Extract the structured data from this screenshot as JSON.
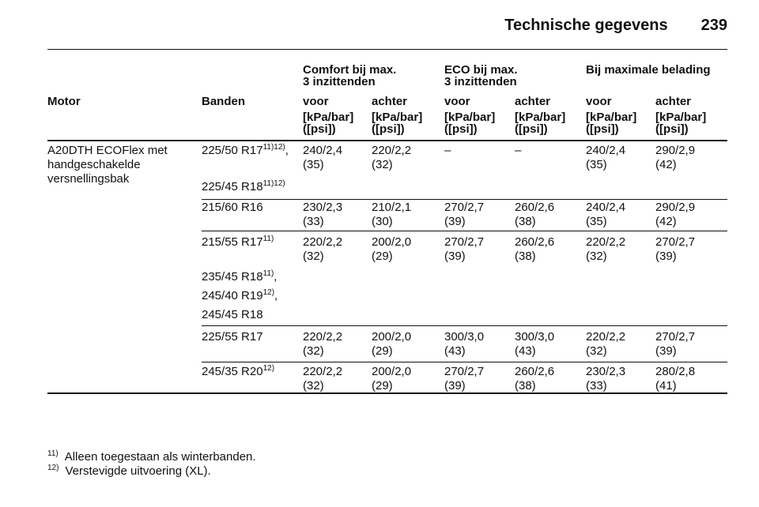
{
  "header": {
    "title": "Technische gegevens",
    "page": "239"
  },
  "table": {
    "groups": [
      [
        "Comfort bij max.",
        "3 inzittenden"
      ],
      [
        "ECO bij max.",
        "3 inzittenden"
      ],
      [
        "Bij maximale belading"
      ]
    ],
    "columns": {
      "motor": "Motor",
      "banden": "Banden",
      "sub": [
        "voor",
        "achter",
        "voor",
        "achter",
        "voor",
        "achter"
      ]
    },
    "units": [
      [
        "[kPa/bar]",
        "([psi])"
      ],
      [
        "[kPa/bar]",
        "([psi])"
      ],
      [
        "[kPa/bar]",
        "([psi])"
      ],
      [
        "[kPa/bar]",
        "([psi])"
      ],
      [
        "[kPa/bar]",
        "([psi])"
      ],
      [
        "[kPa/bar]",
        "([psi])"
      ]
    ],
    "motor": [
      "A20DTH ECOFlex met",
      "handgeschakelde",
      "versnellingsbak"
    ],
    "rows": [
      {
        "tyres": [
          {
            "text": "225/50 R17",
            "sup": "11)12)",
            "suffix": ","
          },
          {
            "text": "225/45 R18",
            "sup": "11)12)"
          }
        ],
        "values": [
          [
            "240/2,4",
            "(35)"
          ],
          [
            "220/2,2",
            "(32)"
          ],
          [
            "–"
          ],
          [
            "–"
          ],
          [
            "240/2,4",
            "(35)"
          ],
          [
            "290/2,9",
            "(42)"
          ]
        ]
      },
      {
        "tyres": [
          {
            "text": "215/60 R16"
          }
        ],
        "values": [
          [
            "230/2,3",
            "(33)"
          ],
          [
            "210/2,1",
            "(30)"
          ],
          [
            "270/2,7",
            "(39)"
          ],
          [
            "260/2,6",
            "(38)"
          ],
          [
            "240/2,4",
            "(35)"
          ],
          [
            "290/2,9",
            "(42)"
          ]
        ]
      },
      {
        "tyres": [
          {
            "text": "215/55 R17",
            "sup": "11)"
          },
          {
            "text": "235/45 R18",
            "sup": "11)",
            "suffix": ","
          },
          {
            "text": "245/40 R19",
            "sup": "12)",
            "suffix": ","
          },
          {
            "text": "245/45 R18"
          }
        ],
        "values": [
          [
            "220/2,2",
            "(32)"
          ],
          [
            "200/2,0",
            "(29)"
          ],
          [
            "270/2,7",
            "(39)"
          ],
          [
            "260/2,6",
            "(38)"
          ],
          [
            "220/2,2",
            "(32)"
          ],
          [
            "270/2,7",
            "(39)"
          ]
        ]
      },
      {
        "tyres": [
          {
            "text": "225/55 R17"
          }
        ],
        "values": [
          [
            "220/2,2",
            "(32)"
          ],
          [
            "200/2,0",
            "(29)"
          ],
          [
            "300/3,0",
            "(43)"
          ],
          [
            "300/3,0",
            "(43)"
          ],
          [
            "220/2,2",
            "(32)"
          ],
          [
            "270/2,7",
            "(39)"
          ]
        ]
      },
      {
        "tyres": [
          {
            "text": "245/35 R20",
            "sup": "12)"
          }
        ],
        "values": [
          [
            "220/2,2",
            "(32)"
          ],
          [
            "200/2,0",
            "(29)"
          ],
          [
            "270/2,7",
            "(39)"
          ],
          [
            "260/2,6",
            "(38)"
          ],
          [
            "230/2,3",
            "(33)"
          ],
          [
            "280/2,8",
            "(41)"
          ]
        ]
      }
    ]
  },
  "footnotes": [
    {
      "mark": "11)",
      "text": "Alleen toegestaan als winterbanden."
    },
    {
      "mark": "12)",
      "text": "Verstevigde uitvoering (XL)."
    }
  ]
}
